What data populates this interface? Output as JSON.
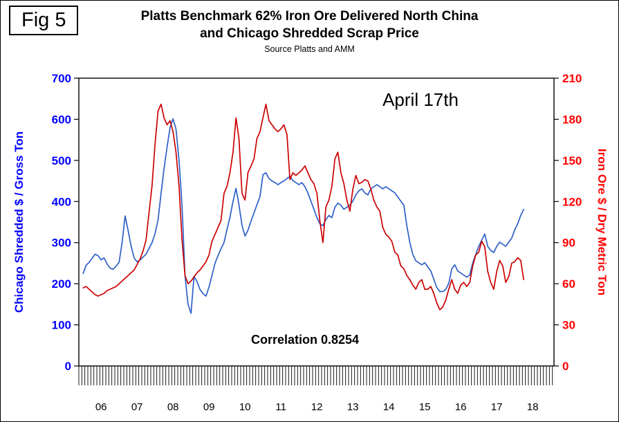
{
  "figure_label": "Fig 5",
  "title_line1": "Platts Benchmark 62% Iron Ore Delivered North China",
  "title_line2": "and Chicago Shredded Scrap Price",
  "source": "Source Platts and AMM",
  "chart_data": {
    "type": "line",
    "title": "Platts Benchmark 62% Iron Ore Delivered North China and Chicago Shredded Scrap Price",
    "subtitle": "Source Platts and AMM",
    "annotations": [
      {
        "text": "April 17th"
      },
      {
        "text": "Correlation 0.8254"
      }
    ],
    "x_axis": {
      "tick_labels": [
        "06",
        "07",
        "08",
        "09",
        "10",
        "11",
        "12",
        "13",
        "14",
        "15",
        "16",
        "17",
        "18"
      ],
      "start_year": 2006,
      "step": "1 month",
      "minor_ticks": "monthly"
    },
    "y_left": {
      "label": "Chicago Shredded $ / Gross Ton",
      "range": [
        0,
        700
      ],
      "ticks": [
        0,
        100,
        200,
        300,
        400,
        500,
        600,
        700
      ],
      "color": "#0000ff"
    },
    "y_right": {
      "label": "Iron Ore $ / Dry Metric Ton",
      "range": [
        0,
        210
      ],
      "ticks": [
        0,
        30,
        60,
        90,
        120,
        150,
        180,
        210
      ],
      "color": "#ff0000"
    },
    "grid": false,
    "legend": false,
    "series": [
      {
        "key": "chicago-shredded-scrap-line",
        "name": "Chicago Shredded $ / Gross Ton",
        "axis": "left",
        "color": "#2c5fc8",
        "values": [
          225,
          245,
          252,
          262,
          272,
          268,
          258,
          263,
          248,
          238,
          235,
          243,
          252,
          300,
          365,
          330,
          292,
          263,
          253,
          258,
          265,
          272,
          286,
          300,
          322,
          355,
          420,
          480,
          532,
          580,
          601,
          576,
          500,
          390,
          220,
          150,
          128,
          218,
          205,
          186,
          176,
          170,
          192,
          220,
          250,
          268,
          285,
          300,
          332,
          362,
          400,
          432,
          392,
          342,
          316,
          330,
          352,
          372,
          392,
          412,
          465,
          470,
          456,
          450,
          446,
          441,
          446,
          450,
          456,
          461,
          451,
          446,
          441,
          446,
          436,
          421,
          401,
          381,
          361,
          346,
          341,
          356,
          366,
          361,
          386,
          396,
          391,
          381,
          386,
          391,
          401,
          416,
          426,
          431,
          421,
          416,
          431,
          436,
          441,
          436,
          431,
          436,
          431,
          426,
          421,
          411,
          401,
          391,
          341,
          301,
          271,
          256,
          251,
          246,
          251,
          241,
          231,
          211,
          191,
          181,
          181,
          186,
          201,
          236,
          246,
          231,
          226,
          221,
          216,
          221,
          251,
          271,
          291,
          306,
          321,
          291,
          281,
          276,
          291,
          301,
          296,
          291,
          301,
          311,
          331,
          346,
          366,
          381
        ]
      },
      {
        "key": "iron-ore-line",
        "name": "Iron Ore $ / Dry Metric Ton",
        "axis": "right",
        "color": "#cc0000",
        "values": [
          57,
          58,
          56,
          54,
          52,
          51,
          52,
          53,
          55,
          56,
          57,
          58,
          60,
          62,
          64,
          66,
          68,
          70,
          74,
          78,
          84,
          92,
          112,
          132,
          162,
          186,
          191,
          181,
          176,
          179,
          171,
          156,
          131,
          92,
          66,
          60,
          62,
          65,
          68,
          70,
          73,
          76,
          81,
          91,
          96,
          101,
          106,
          126,
          131,
          141,
          156,
          181,
          166,
          126,
          121,
          141,
          146,
          151,
          166,
          171,
          181,
          191,
          179,
          176,
          173,
          171,
          173,
          176,
          169,
          136,
          141,
          139,
          141,
          143,
          146,
          141,
          136,
          133,
          126,
          106,
          90,
          116,
          121,
          131,
          151,
          156,
          141,
          133,
          121,
          113,
          129,
          139,
          133,
          134,
          136,
          135,
          129,
          121,
          116,
          113,
          101,
          96,
          94,
          91,
          83,
          81,
          73,
          71,
          66,
          63,
          59,
          56,
          61,
          63,
          56,
          56,
          58,
          53,
          46,
          41,
          43,
          48,
          56,
          63,
          56,
          53,
          59,
          61,
          58,
          61,
          73,
          81,
          83,
          91,
          87,
          69,
          61,
          56,
          69,
          77,
          73,
          61,
          65,
          75,
          76,
          79,
          77,
          63
        ]
      }
    ]
  }
}
